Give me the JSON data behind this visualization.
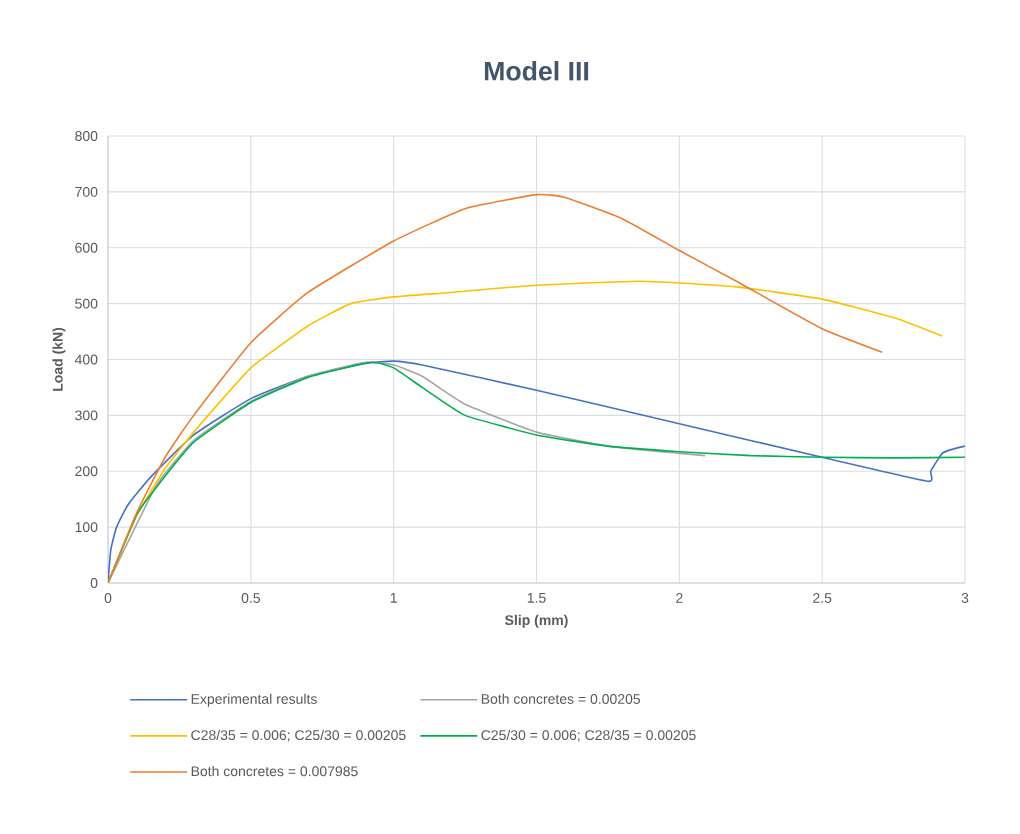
{
  "chart_data": {
    "type": "line",
    "title": "Model III",
    "xlabel": "Slip (mm)",
    "ylabel": "Load (kN)",
    "xlim": [
      0,
      3
    ],
    "ylim": [
      0,
      800
    ],
    "xticks": [
      0,
      0.5,
      1,
      1.5,
      2,
      2.5,
      3
    ],
    "yticks": [
      0,
      100,
      200,
      300,
      400,
      500,
      600,
      700,
      800
    ],
    "grid": true,
    "legend": "bottom",
    "marker": "none",
    "line_style": "solid",
    "series": [
      {
        "name": "Experimental results",
        "color": "#4472c4",
        "x": [
          0,
          0.01,
          0.03,
          0.07,
          0.15,
          0.3,
          0.5,
          0.7,
          0.9,
          1.0,
          1.1,
          1.5,
          2,
          2.5,
          2.87,
          2.88,
          2.92,
          2.96,
          3.0
        ],
        "values": [
          0,
          60,
          100,
          140,
          190,
          265,
          330,
          370,
          393,
          397,
          390,
          345,
          285,
          225,
          182,
          200,
          232,
          240,
          245
        ]
      },
      {
        "name": "Both concretes = 0.00205",
        "color": "#a5a5a5",
        "x": [
          0,
          0.17,
          0.3,
          0.5,
          0.7,
          0.9,
          1.0,
          1.1,
          1.25,
          1.5,
          1.75,
          2.0,
          2.09
        ],
        "values": [
          0,
          175,
          255,
          325,
          370,
          395,
          390,
          370,
          320,
          270,
          245,
          232,
          228
        ]
      },
      {
        "name": "C28/35 = 0.006; C25/30 = 0.00205",
        "color": "#ffc000",
        "x": [
          0,
          0.1,
          0.2,
          0.3,
          0.5,
          0.7,
          0.85,
          1.0,
          1.2,
          1.5,
          1.85,
          2.0,
          2.2,
          2.5,
          2.75,
          2.92
        ],
        "values": [
          0,
          120,
          205,
          270,
          385,
          460,
          500,
          512,
          520,
          533,
          540,
          537,
          530,
          508,
          475,
          442
        ]
      },
      {
        "name": "C25/30 = 0.006; C28/35 = 0.00205",
        "color": "#00b050",
        "x": [
          0,
          0.1,
          0.17,
          0.3,
          0.5,
          0.7,
          0.92,
          1.0,
          1.1,
          1.25,
          1.5,
          1.75,
          2,
          2.25,
          2.5,
          2.75,
          3
        ],
        "values": [
          0,
          122,
          172,
          252,
          323,
          368,
          395,
          385,
          350,
          300,
          265,
          245,
          235,
          228,
          225,
          224,
          225
        ]
      },
      {
        "name": "Both concretes = 0.007985",
        "color": "#ed7d31",
        "x": [
          0,
          0.1,
          0.2,
          0.3,
          0.5,
          0.7,
          1.0,
          1.25,
          1.5,
          1.6,
          1.8,
          2.0,
          2.2,
          2.5,
          2.71
        ],
        "values": [
          0,
          125,
          225,
          300,
          430,
          520,
          612,
          670,
          695,
          690,
          652,
          595,
          540,
          455,
          413
        ]
      }
    ]
  }
}
